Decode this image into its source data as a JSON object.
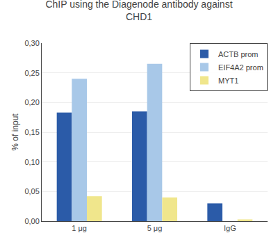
{
  "chart_data": {
    "type": "bar",
    "title": "ChIP using the Diagenode antibody against\nCHD1",
    "ylabel": "% of input",
    "categories": [
      "1 μg",
      "5 μg",
      "IgG"
    ],
    "series": [
      {
        "name": "ACTB prom",
        "color": "#2B5BA8",
        "values": [
          0.183,
          0.185,
          0.03
        ]
      },
      {
        "name": "EIF4A2 prom",
        "color": "#A8C8E8",
        "values": [
          0.24,
          0.265,
          0.0
        ]
      },
      {
        "name": "MYT1",
        "color": "#F0E68C",
        "values": [
          0.042,
          0.04,
          0.003
        ]
      }
    ],
    "ylim": [
      0,
      0.3
    ],
    "yticks": [
      {
        "value": 0.0,
        "label": "0,00"
      },
      {
        "value": 0.05,
        "label": "0,05"
      },
      {
        "value": 0.1,
        "label": "0,10"
      },
      {
        "value": 0.15,
        "label": "0,15"
      },
      {
        "value": 0.2,
        "label": "0,20"
      },
      {
        "value": 0.25,
        "label": "0,25"
      },
      {
        "value": 0.3,
        "label": "0,30"
      }
    ],
    "grid": true,
    "legend": "upper right"
  }
}
